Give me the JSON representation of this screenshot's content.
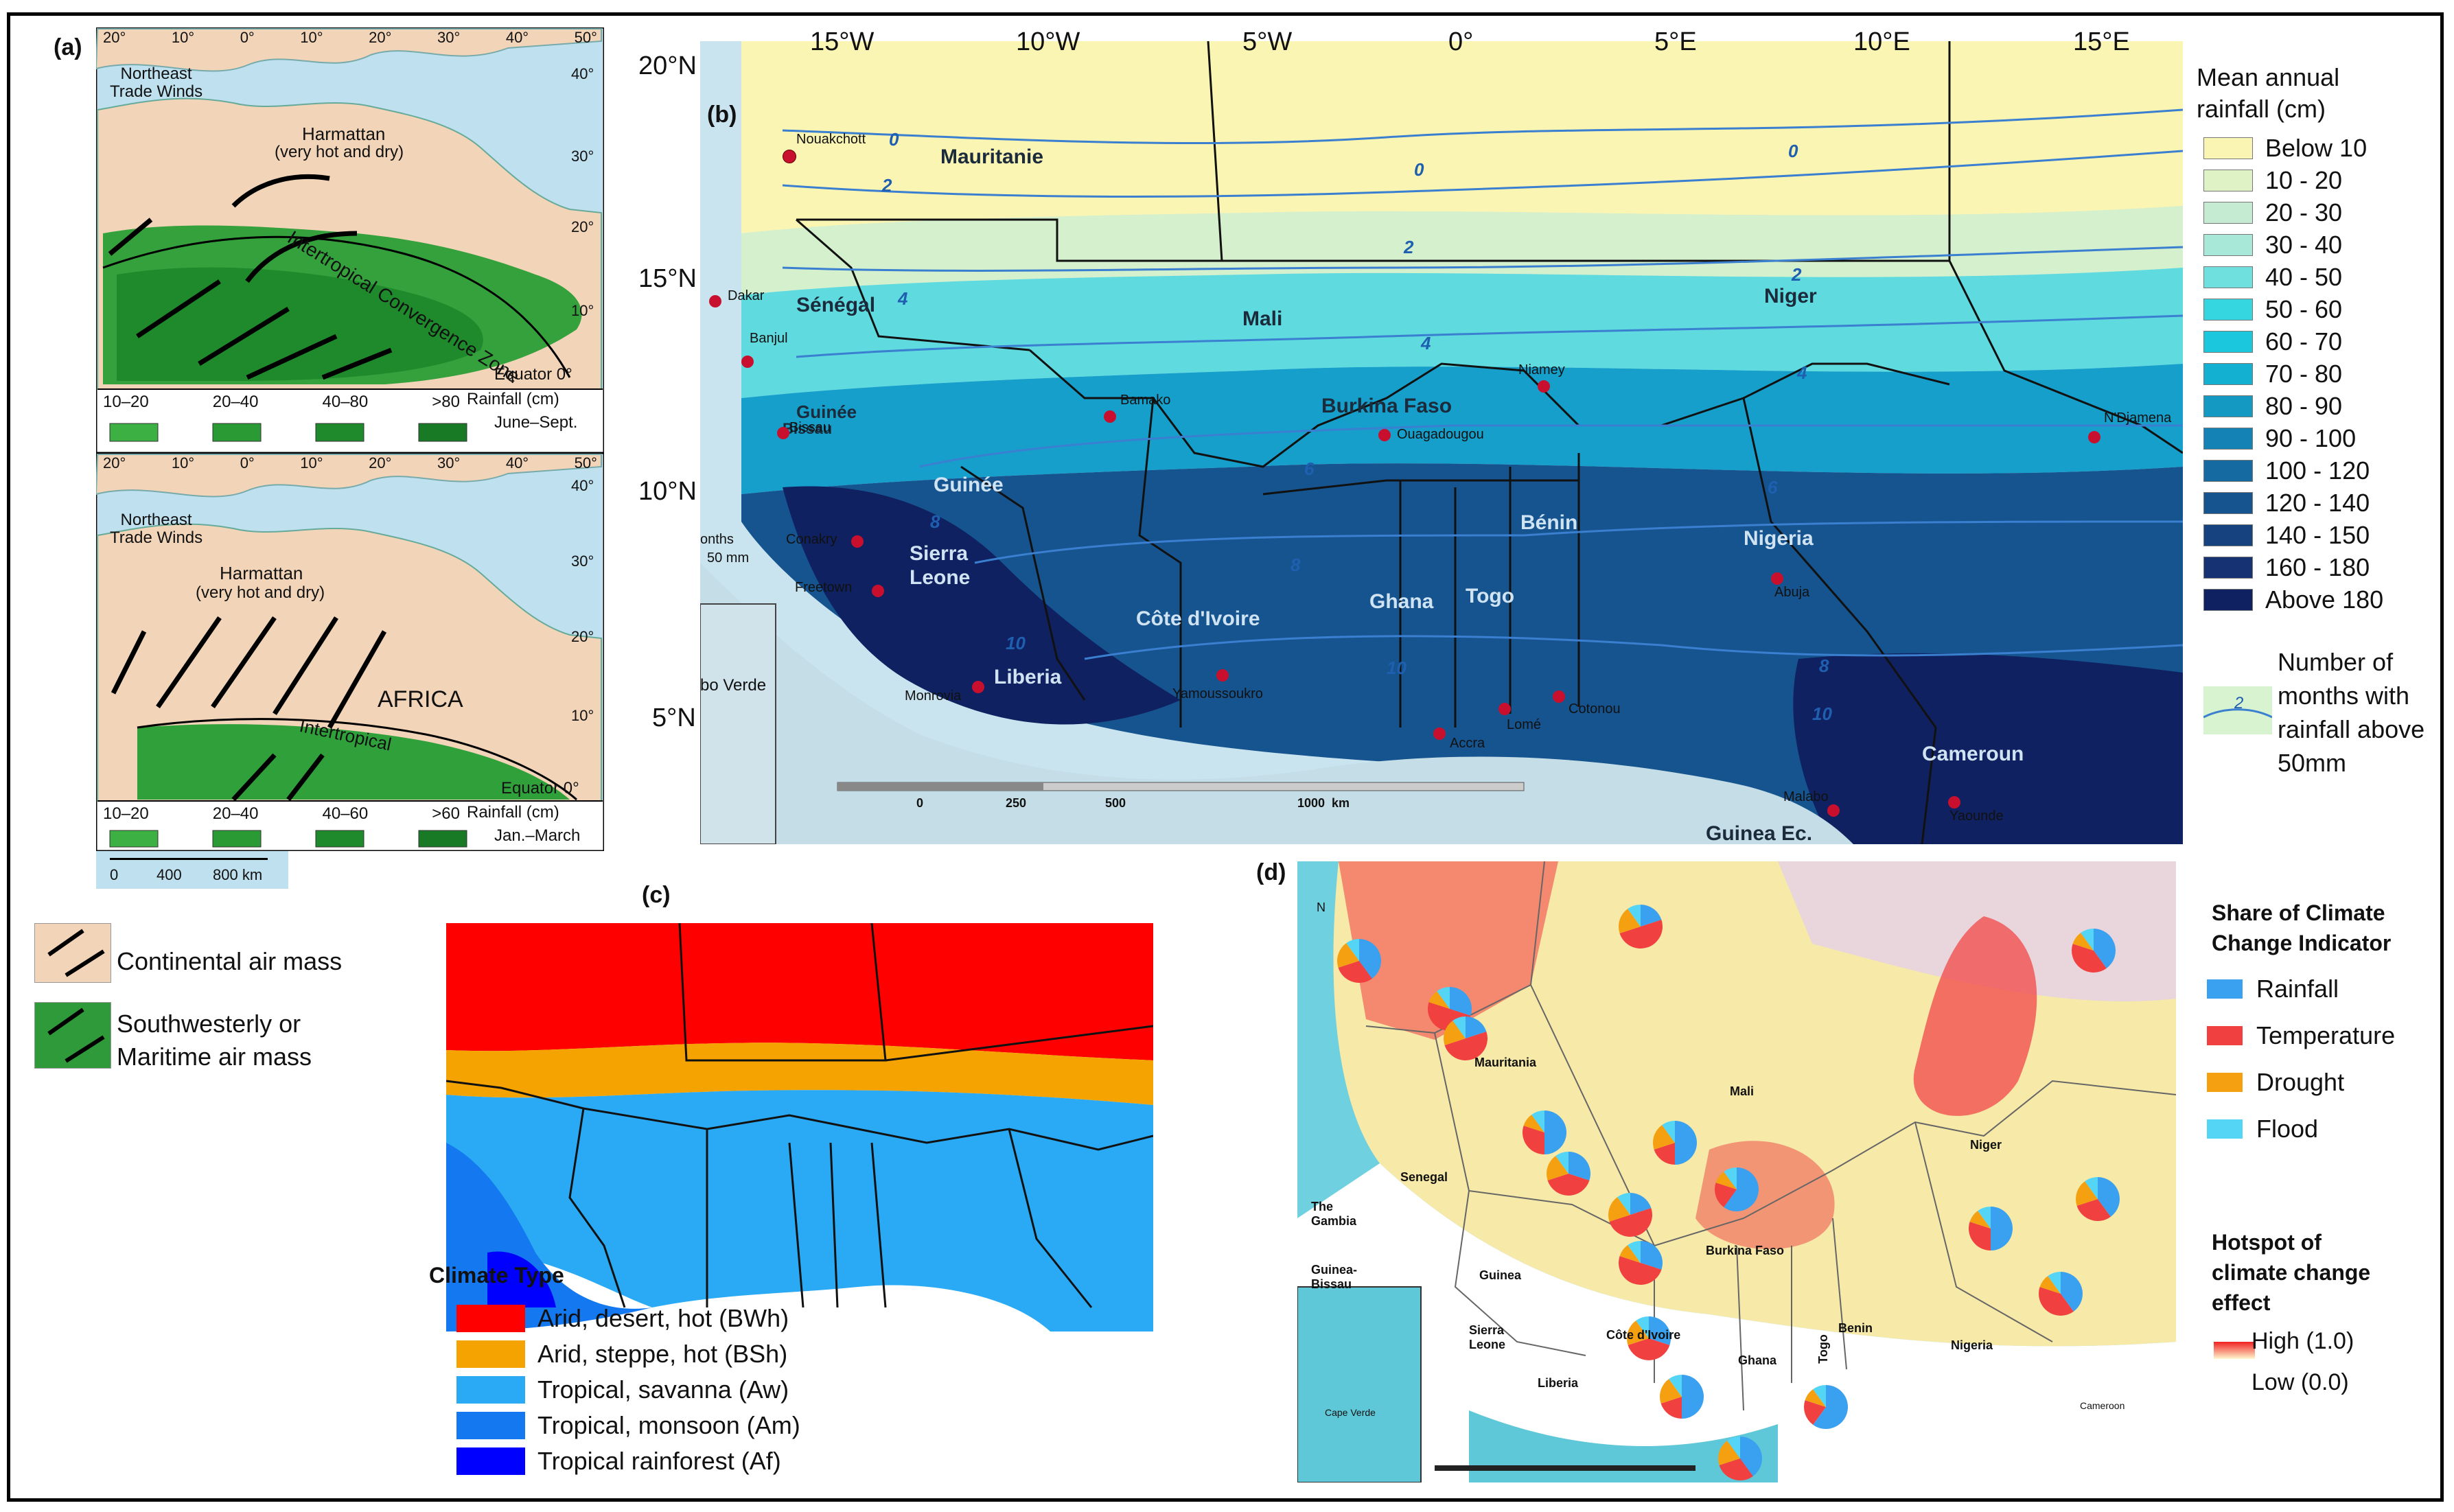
{
  "panel_a": {
    "label": "(a)",
    "top": {
      "lon_ticks": [
        "20°",
        "10°",
        "0°",
        "10°",
        "20°",
        "30°",
        "40°",
        "50°"
      ],
      "lat_ticks": [
        "40°",
        "30°",
        "20°",
        "10°"
      ],
      "trade_winds": "Northeast\nTrade Winds",
      "harmattan": "Harmattan",
      "harmattan_sub": "(very hot and dry)",
      "itcz": "Intertropical Convergence Zone",
      "equator": "Equator 0°",
      "rainfall_bins": [
        "10–20",
        "20–40",
        "40–80",
        ">80"
      ],
      "rainfall_label": "Rainfall (cm)",
      "season": "June–Sept."
    },
    "bottom": {
      "lon_ticks": [
        "20°",
        "10°",
        "0°",
        "10°",
        "20°",
        "30°",
        "40°",
        "50°"
      ],
      "lat_ticks": [
        "40°",
        "30°",
        "20°",
        "10°"
      ],
      "trade_winds": "Northeast\nTrade Winds",
      "harmattan": "Harmattan",
      "harmattan_sub": "(very hot and dry)",
      "africa": "AFRICA",
      "itcz": "Intertropical",
      "equator": "Equator 0°",
      "rainfall_bins": [
        "10–20",
        "20–40",
        "40–60",
        ">60"
      ],
      "rainfall_label": "Rainfall (cm)",
      "season": "Jan.–March"
    },
    "scale": {
      "ticks": [
        "0",
        "400",
        "800 km"
      ]
    },
    "legend": [
      {
        "label": "Continental air mass",
        "color": "#f2d4b8"
      },
      {
        "label": "Southwesterly or\nMaritime air mass",
        "color": "#2f9a3a"
      }
    ]
  },
  "panel_b": {
    "label": "(b)",
    "lon_ticks": [
      "15°W",
      "10°W",
      "5°W",
      "0°",
      "5°E",
      "10°E",
      "15°E"
    ],
    "lat_ticks": [
      "20°N",
      "15°N",
      "10°N",
      "5°N"
    ],
    "countries": [
      "Mauritanie",
      "Sénégal",
      "Mali",
      "Niger",
      "Burkina Faso",
      "Guinée",
      "Sierra",
      "Leone",
      "Liberia",
      "Côte d'Ivoire",
      "Ghana",
      "Togo",
      "Bénin",
      "Nigeria",
      "Cameroun",
      "Guinea Ec.",
      "Guinée",
      "Bissau"
    ],
    "cities": [
      "Nouakchott",
      "Dakar",
      "Banjul",
      "Bissau",
      "Bamako",
      "Niamey",
      "Ouagadougou",
      "N'Djamena",
      "Conakry",
      "Freetown",
      "Monrovia",
      "Yamoussoukro",
      "Accra",
      "Lomé",
      "Cotonou",
      "Abuja",
      "Malabo",
      "Yaounde"
    ],
    "isoline_values": [
      "0",
      "2",
      "4",
      "6",
      "8",
      "10"
    ],
    "scale_ticks": [
      "0",
      "250",
      "500",
      "1000  km"
    ],
    "inset_labels": [
      "onths",
      "50 mm",
      "bo Verde"
    ],
    "legend_title": "Mean annual\nrainfall (cm)",
    "legend": [
      {
        "label": "Below 10",
        "color": "#fbf5b4"
      },
      {
        "label": "10 - 20",
        "color": "#dff2c6"
      },
      {
        "label": "20 - 30",
        "color": "#c5ecd3"
      },
      {
        "label": "30 - 40",
        "color": "#a8e8d8"
      },
      {
        "label": "40 - 50",
        "color": "#6fe0dd"
      },
      {
        "label": "50 - 60",
        "color": "#35d6e0"
      },
      {
        "label": "60 - 70",
        "color": "#1bc7dd"
      },
      {
        "label": "70 - 80",
        "color": "#14b0d2"
      },
      {
        "label": "80 - 90",
        "color": "#1499c2"
      },
      {
        "label": "90 - 100",
        "color": "#1482b4"
      },
      {
        "label": "100 - 120",
        "color": "#156aa2"
      },
      {
        "label": "120 - 140",
        "color": "#16548f"
      },
      {
        "label": "140 - 150",
        "color": "#174280"
      },
      {
        "label": "160 - 180",
        "color": "#163272"
      },
      {
        "label": "Above 180",
        "color": "#0f2160"
      }
    ],
    "isoline_legend_value": "2",
    "isoline_legend": "Number of\nmonths with\nrainfall above\n50mm"
  },
  "panel_c": {
    "label": "(c)",
    "legend_title": "Climate Type",
    "legend": [
      {
        "label": "Arid, desert, hot (BWh)",
        "color": "#ff0000"
      },
      {
        "label": "Arid, steppe, hot (BSh)",
        "color": "#f5a300"
      },
      {
        "label": "Tropical, savanna (Aw)",
        "color": "#2aaaf5"
      },
      {
        "label": "Tropical, monsoon (Am)",
        "color": "#1478f0"
      },
      {
        "label": "Tropical rainforest (Af)",
        "color": "#0000ff"
      }
    ]
  },
  "panel_d": {
    "label": "(d)",
    "countries": [
      "Mauritania",
      "Mali",
      "Niger",
      "Senegal",
      "The\nGambia",
      "Guinea-\nBissau",
      "Guinea",
      "Sierra\nLeone",
      "Liberia",
      "Côte d'Ivoire",
      "Burkina Faso",
      "Ghana",
      "Togo",
      "Benin",
      "Nigeria",
      "Cameroon",
      "Cape Verde"
    ],
    "north": "N",
    "legend_title": "Share of Climate\nChange Indicator",
    "indicators": [
      {
        "label": "Rainfall",
        "color": "#3aa0f0"
      },
      {
        "label": "Temperature",
        "color": "#f04040"
      },
      {
        "label": "Drought",
        "color": "#f5a010"
      },
      {
        "label": "Flood",
        "color": "#55d5f5"
      }
    ],
    "hotspot_title": "Hotspot of\nclimate change\neffect",
    "hotspot_high": "High (1.0)",
    "hotspot_low": "Low (0.0)"
  }
}
